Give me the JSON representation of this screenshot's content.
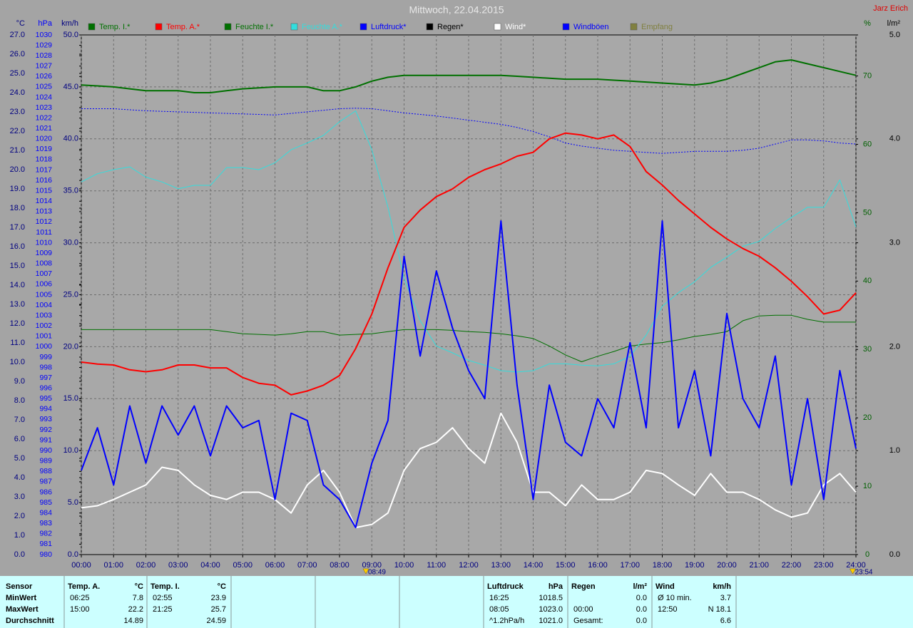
{
  "chart_data": {
    "type": "line",
    "title": "Mittwoch, 22.04.2015",
    "author": "Jarz Erich",
    "x": [
      0,
      0.5,
      1,
      1.5,
      2,
      2.5,
      3,
      3.5,
      4,
      4.5,
      5,
      5.5,
      6,
      6.5,
      7,
      7.5,
      8,
      8.5,
      9,
      9.5,
      10,
      10.5,
      11,
      11.5,
      12,
      12.5,
      13,
      13.5,
      14,
      14.5,
      15,
      15.5,
      16,
      16.5,
      17,
      17.5,
      18,
      18.5,
      19,
      19.5,
      20,
      20.5,
      21,
      21.5,
      22,
      22.5,
      23,
      23.5,
      24
    ],
    "xlim": [
      0,
      24
    ],
    "xticks": [
      {
        "value": 0,
        "label": "00:00"
      },
      {
        "value": 1,
        "label": "01:00"
      },
      {
        "value": 2,
        "label": "02:00"
      },
      {
        "value": 3,
        "label": "03:00"
      },
      {
        "value": 4,
        "label": "04:00"
      },
      {
        "value": 5,
        "label": "05:00"
      },
      {
        "value": 6,
        "label": "06:00"
      },
      {
        "value": 7,
        "label": "07:00"
      },
      {
        "value": 8,
        "label": "08:00"
      },
      {
        "value": 9,
        "label": "09:00"
      },
      {
        "value": 10,
        "label": "10:00"
      },
      {
        "value": 11,
        "label": "11:00"
      },
      {
        "value": 12,
        "label": "12:00"
      },
      {
        "value": 13,
        "label": "13:00"
      },
      {
        "value": 14,
        "label": "14:00"
      },
      {
        "value": 15,
        "label": "15:00"
      },
      {
        "value": 16,
        "label": "16:00"
      },
      {
        "value": 17,
        "label": "17:00"
      },
      {
        "value": 18,
        "label": "18:00"
      },
      {
        "value": 19,
        "label": "19:00"
      },
      {
        "value": 20,
        "label": "20:00"
      },
      {
        "value": 21,
        "label": "21:00"
      },
      {
        "value": 22,
        "label": "22:00"
      },
      {
        "value": 23,
        "label": "23:00"
      },
      {
        "value": 24,
        "label": "24:00"
      }
    ],
    "markers": [
      {
        "x": 8.817,
        "label": "08:49"
      },
      {
        "x": 23.9,
        "label": "23:54"
      }
    ],
    "grid": true,
    "grid_axis": 2,
    "axes": [
      {
        "label": "°C",
        "side": "left",
        "color": "#000080",
        "ylim": [
          0,
          27
        ],
        "yticks": [
          {
            "value": 0,
            "label": "0.0"
          },
          {
            "value": 1,
            "label": "1.0"
          },
          {
            "value": 2,
            "label": "2.0"
          },
          {
            "value": 3,
            "label": "3.0"
          },
          {
            "value": 4,
            "label": "4.0"
          },
          {
            "value": 5,
            "label": "5.0"
          },
          {
            "value": 6,
            "label": "6.0"
          },
          {
            "value": 7,
            "label": "7.0"
          },
          {
            "value": 8,
            "label": "8.0"
          },
          {
            "value": 9,
            "label": "9.0"
          },
          {
            "value": 10,
            "label": "10.0"
          },
          {
            "value": 11,
            "label": "11.0"
          },
          {
            "value": 12,
            "label": "12.0"
          },
          {
            "value": 13,
            "label": "13.0"
          },
          {
            "value": 14,
            "label": "14.0"
          },
          {
            "value": 15,
            "label": "15.0"
          },
          {
            "value": 16,
            "label": "16.0"
          },
          {
            "value": 17,
            "label": "17.0"
          },
          {
            "value": 18,
            "label": "18.0"
          },
          {
            "value": 19,
            "label": "19.0"
          },
          {
            "value": 20,
            "label": "20.0"
          },
          {
            "value": 21,
            "label": "21.0"
          },
          {
            "value": 22,
            "label": "22.0"
          },
          {
            "value": 23,
            "label": "23.0"
          },
          {
            "value": 24,
            "label": "24.0"
          },
          {
            "value": 25,
            "label": "25.0"
          },
          {
            "value": 26,
            "label": "26.0"
          },
          {
            "value": 27,
            "label": "27.0"
          }
        ]
      },
      {
        "label": "hPa",
        "side": "left",
        "color": "#0000ff",
        "ylim": [
          980,
          1030
        ],
        "yticks": [
          980,
          981,
          982,
          983,
          984,
          985,
          986,
          987,
          988,
          989,
          990,
          991,
          992,
          993,
          994,
          995,
          996,
          997,
          998,
          999,
          1000,
          1001,
          1002,
          1003,
          1004,
          1005,
          1006,
          1007,
          1008,
          1009,
          1010,
          1011,
          1012,
          1013,
          1014,
          1015,
          1016,
          1017,
          1018,
          1019,
          1020,
          1021,
          1022,
          1023,
          1024,
          1025,
          1026,
          1027,
          1028,
          1029,
          1030
        ]
      },
      {
        "label": "km/h",
        "side": "left",
        "color": "#000080",
        "ylim": [
          0,
          50
        ],
        "yticks": [
          {
            "value": 0,
            "label": "0.0"
          },
          {
            "value": 5,
            "label": "5.0"
          },
          {
            "value": 10,
            "label": "10.0"
          },
          {
            "value": 15,
            "label": "15.0"
          },
          {
            "value": 20,
            "label": "20.0"
          },
          {
            "value": 25,
            "label": "25.0"
          },
          {
            "value": 30,
            "label": "30.0"
          },
          {
            "value": 35,
            "label": "35.0"
          },
          {
            "value": 40,
            "label": "40.0"
          },
          {
            "value": 45,
            "label": "45.0"
          },
          {
            "value": 50,
            "label": "50.0"
          }
        ]
      },
      {
        "label": "%",
        "side": "right",
        "color": "#006000",
        "ylim": [
          0,
          76
        ],
        "yticks": [
          0,
          10,
          20,
          30,
          40,
          50,
          60,
          70
        ]
      },
      {
        "label": "l/m²",
        "side": "right",
        "color": "#000000",
        "ylim": [
          0,
          5
        ],
        "yticks": [
          {
            "value": 0,
            "label": "0.0"
          },
          {
            "value": 1,
            "label": "1.0"
          },
          {
            "value": 2,
            "label": "2.0"
          },
          {
            "value": 3,
            "label": "3.0"
          },
          {
            "value": 4,
            "label": "4.0"
          },
          {
            "value": 5,
            "label": "5.0"
          }
        ]
      }
    ],
    "series": [
      {
        "name": "Temp. I.*",
        "color": "#007000",
        "axis": 0,
        "line": "thick",
        "values": [
          24.4,
          24.35,
          24.3,
          24.2,
          24.1,
          24.1,
          24.1,
          24.0,
          24.0,
          24.1,
          24.2,
          24.25,
          24.3,
          24.3,
          24.3,
          24.1,
          24.1,
          24.3,
          24.6,
          24.8,
          24.9,
          24.9,
          24.9,
          24.9,
          24.9,
          24.9,
          24.9,
          24.85,
          24.8,
          24.75,
          24.7,
          24.7,
          24.7,
          24.65,
          24.6,
          24.55,
          24.5,
          24.45,
          24.4,
          24.5,
          24.7,
          25.0,
          25.3,
          25.6,
          25.7,
          25.5,
          25.3,
          25.1,
          24.9
        ]
      },
      {
        "name": "Temp. A.*",
        "color": "#ff0000",
        "axis": 0,
        "line": "thick",
        "values": [
          10.0,
          9.9,
          9.85,
          9.6,
          9.5,
          9.6,
          9.85,
          9.85,
          9.7,
          9.7,
          9.2,
          8.9,
          8.8,
          8.3,
          8.5,
          8.8,
          9.3,
          10.7,
          12.5,
          14.9,
          17.0,
          17.9,
          18.6,
          19.0,
          19.6,
          20.0,
          20.3,
          20.7,
          20.9,
          21.6,
          21.9,
          21.8,
          21.6,
          21.8,
          21.2,
          19.9,
          19.2,
          18.4,
          17.7,
          17.0,
          16.4,
          15.9,
          15.5,
          14.9,
          14.2,
          13.4,
          12.5,
          12.7,
          13.6
        ]
      },
      {
        "name": "Feuchte I.*",
        "color": "#007000",
        "axis": 3,
        "line": "thin",
        "values": [
          32.9,
          32.9,
          32.9,
          32.9,
          32.9,
          32.9,
          32.9,
          32.9,
          32.9,
          32.6,
          32.3,
          32.2,
          32.1,
          32.3,
          32.6,
          32.6,
          32.1,
          32.2,
          32.3,
          32.6,
          32.9,
          32.9,
          32.9,
          32.8,
          32.6,
          32.5,
          32.3,
          32.0,
          31.6,
          30.5,
          29.2,
          28.2,
          29.0,
          29.7,
          30.5,
          30.8,
          31.0,
          31.4,
          31.9,
          32.2,
          32.6,
          34.2,
          34.9,
          35.0,
          35.0,
          34.4,
          34.0,
          34.0,
          34.0
        ]
      },
      {
        "name": "Feuchte A.*",
        "color": "#33dddd",
        "axis": 3,
        "line": "thin",
        "values": [
          54.5,
          55.7,
          56.3,
          56.7,
          55.2,
          54.5,
          53.5,
          54.0,
          54.0,
          56.6,
          56.6,
          56.3,
          57.3,
          59.2,
          60.2,
          61.3,
          63.3,
          64.9,
          59.2,
          50.8,
          40.4,
          34.2,
          30.5,
          29.5,
          28.4,
          27.7,
          26.9,
          26.7,
          26.9,
          27.9,
          27.9,
          27.7,
          27.6,
          27.9,
          29.0,
          32.1,
          36.3,
          38.3,
          39.9,
          42.0,
          43.5,
          45.1,
          45.8,
          47.7,
          49.3,
          50.8,
          50.8,
          54.8,
          47.9
        ]
      },
      {
        "name": "Luftdruck*",
        "color": "#0000ff",
        "axis": 1,
        "line": "dotted",
        "values": [
          1022.9,
          1022.9,
          1022.9,
          1022.8,
          1022.7,
          1022.65,
          1022.6,
          1022.55,
          1022.5,
          1022.45,
          1022.4,
          1022.35,
          1022.3,
          1022.45,
          1022.6,
          1022.75,
          1022.9,
          1022.95,
          1022.9,
          1022.7,
          1022.5,
          1022.35,
          1022.2,
          1022.0,
          1021.8,
          1021.6,
          1021.4,
          1021.1,
          1020.7,
          1020.2,
          1019.6,
          1019.3,
          1019.1,
          1018.9,
          1018.8,
          1018.7,
          1018.6,
          1018.7,
          1018.8,
          1018.8,
          1018.8,
          1018.9,
          1019.1,
          1019.5,
          1019.9,
          1019.9,
          1019.8,
          1019.6,
          1019.5
        ]
      },
      {
        "name": "Regen*",
        "color": "#000000",
        "axis": 4,
        "line": "thin",
        "values": [
          null,
          null,
          null,
          null,
          null,
          null,
          null,
          null,
          null,
          null,
          null,
          null,
          null,
          null,
          null,
          null,
          null,
          null,
          null,
          null,
          null,
          null,
          null,
          null,
          null,
          null,
          null,
          null,
          null,
          null,
          null,
          null,
          null,
          null,
          null,
          null,
          null,
          null,
          null,
          null,
          null,
          null,
          null,
          null,
          null,
          null,
          null,
          null,
          null
        ]
      },
      {
        "name": "Wind*",
        "color": "#ffffff",
        "axis": 2,
        "line": "thick",
        "values": [
          4.5,
          4.7,
          5.3,
          6.0,
          6.7,
          8.4,
          8.1,
          6.7,
          5.7,
          5.3,
          6.0,
          6.0,
          5.3,
          4.0,
          6.7,
          8.1,
          6.0,
          2.6,
          2.9,
          4.0,
          8.1,
          10.2,
          10.8,
          12.2,
          10.2,
          8.8,
          13.6,
          10.8,
          6.0,
          6.0,
          4.7,
          6.7,
          5.3,
          5.3,
          6.0,
          8.1,
          7.8,
          6.7,
          5.7,
          7.8,
          6.0,
          6.0,
          5.3,
          4.3,
          3.6,
          4.0,
          6.7,
          7.8,
          6.0
        ]
      },
      {
        "name": "Windböen",
        "color": "#0000ff",
        "axis": 2,
        "line": "thick",
        "values": [
          8.1,
          12.2,
          6.7,
          14.3,
          8.8,
          14.3,
          11.5,
          14.3,
          9.5,
          14.3,
          12.2,
          12.9,
          5.3,
          13.6,
          12.9,
          6.7,
          5.3,
          2.6,
          8.8,
          12.9,
          28.7,
          19.1,
          27.3,
          21.8,
          17.7,
          15.0,
          32.1,
          16.3,
          5.3,
          16.3,
          10.8,
          9.5,
          15.0,
          12.2,
          20.4,
          12.2,
          32.1,
          12.2,
          17.7,
          9.5,
          23.2,
          15.0,
          12.2,
          19.1,
          6.7,
          15.0,
          5.3,
          17.7,
          10.2
        ]
      },
      {
        "name": "Empfang",
        "color": "#808040",
        "axis": 3,
        "line": "thin",
        "values": [
          null,
          null,
          null,
          null,
          null,
          null,
          null,
          null,
          null,
          null,
          null,
          null,
          null,
          null,
          null,
          null,
          null,
          null,
          null,
          null,
          null,
          null,
          null,
          null,
          null,
          null,
          null,
          null,
          null,
          null,
          null,
          null,
          null,
          null,
          null,
          null,
          null,
          null,
          null,
          null,
          null,
          null,
          null,
          null,
          null,
          null,
          null,
          null,
          null
        ]
      }
    ]
  },
  "table": {
    "row_labels": [
      "Sensor",
      "MinWert",
      "MaxWert",
      "Durchschnitt"
    ],
    "blocks": [
      {
        "header": "Temp. A.",
        "unit": "°C",
        "rows": [
          [
            "06:25",
            "7.8"
          ],
          [
            "15:00",
            "22.2"
          ],
          [
            null,
            "14.89"
          ]
        ]
      },
      {
        "header": "Temp. I.",
        "unit": "°C",
        "rows": [
          [
            "02:55",
            "23.9"
          ],
          [
            "21:25",
            "25.7"
          ],
          [
            null,
            "24.59"
          ]
        ]
      },
      {
        "header": "Luftdruck",
        "unit": "hPa",
        "rows": [
          [
            "16:25",
            "1018.5"
          ],
          [
            "08:05",
            "1023.0"
          ],
          [
            "^1.2hPa/h",
            "1021.0"
          ]
        ]
      },
      {
        "header": "Regen",
        "unit": "l/m²",
        "rows": [
          [
            null,
            "0.0"
          ],
          [
            "00:00",
            "0.0"
          ],
          [
            "Gesamt:",
            "0.0"
          ]
        ]
      },
      {
        "header": "Wind",
        "unit": "km/h",
        "rows": [
          [
            "Ø 10 min.",
            "3.7"
          ],
          [
            "12:50",
            "N 18.1"
          ],
          [
            null,
            "6.6"
          ]
        ]
      }
    ]
  }
}
